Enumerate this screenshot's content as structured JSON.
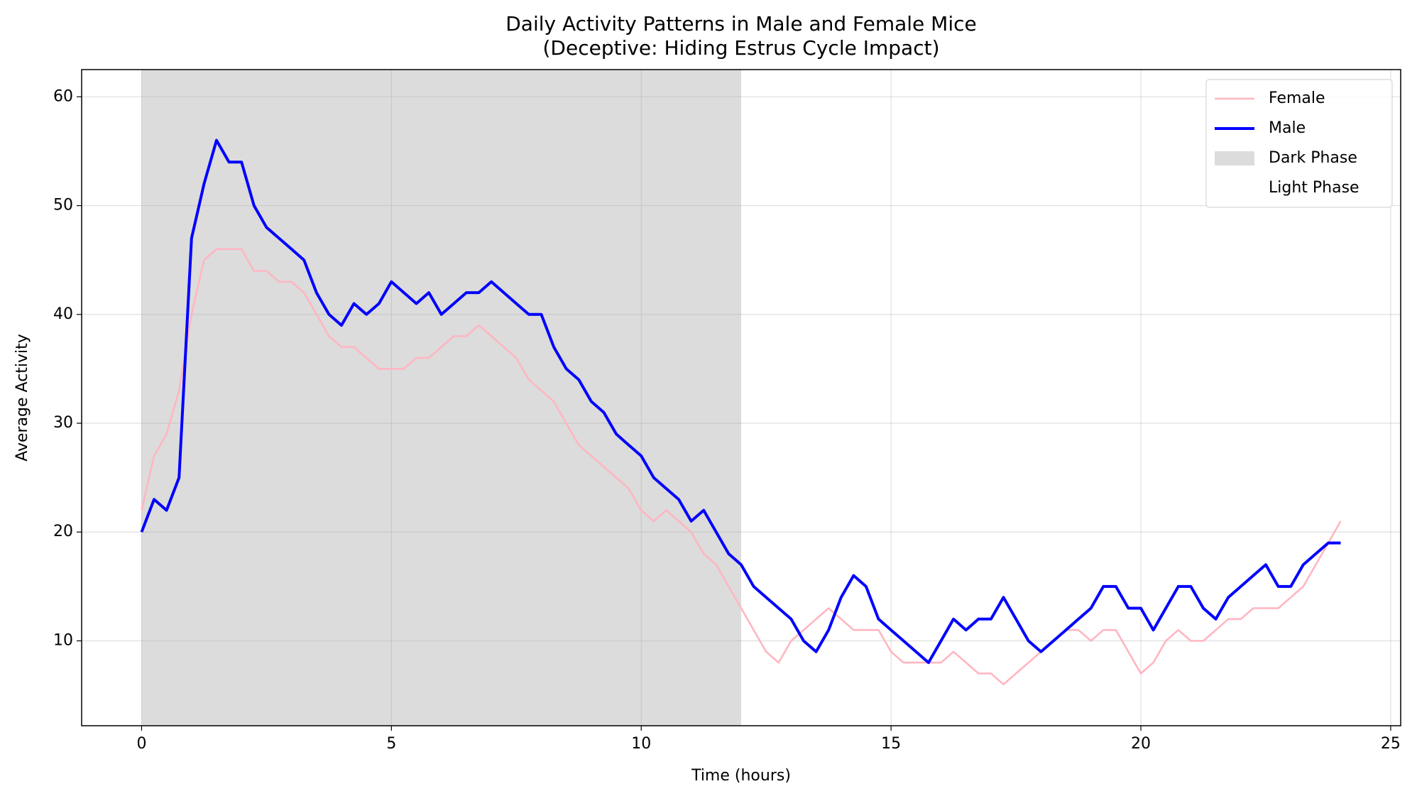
{
  "chart_data": {
    "type": "line",
    "title": "Daily Activity Patterns in Male and Female Mice",
    "subtitle": "(Deceptive: Hiding Estrus Cycle Impact)",
    "x_label": "Time (hours)",
    "y_label": "Average Activity",
    "x": [
      0,
      0.25,
      0.5,
      0.75,
      1,
      1.25,
      1.5,
      1.75,
      2,
      2.25,
      2.5,
      2.75,
      3,
      3.25,
      3.5,
      3.75,
      4,
      4.25,
      4.5,
      4.75,
      5,
      5.25,
      5.5,
      5.75,
      6,
      6.25,
      6.5,
      6.75,
      7,
      7.25,
      7.5,
      7.75,
      8,
      8.25,
      8.5,
      8.75,
      9,
      9.25,
      9.5,
      9.75,
      10,
      10.25,
      10.5,
      10.75,
      11,
      11.25,
      11.5,
      11.75,
      12,
      12.25,
      12.5,
      12.75,
      13,
      13.25,
      13.5,
      13.75,
      14,
      14.25,
      14.5,
      14.75,
      15,
      15.25,
      15.5,
      15.75,
      16,
      16.25,
      16.5,
      16.75,
      17,
      17.25,
      17.5,
      17.75,
      18,
      18.25,
      18.5,
      18.75,
      19,
      19.25,
      19.5,
      19.75,
      20,
      20.25,
      20.5,
      20.75,
      21,
      21.25,
      21.5,
      21.75,
      22,
      22.25,
      22.5,
      22.75,
      23,
      23.25,
      23.5,
      23.75,
      24
    ],
    "series": [
      {
        "name": "Female",
        "color": "#ffb6c1",
        "values": [
          22,
          27,
          29,
          33,
          40,
          45,
          46,
          46,
          46,
          44,
          44,
          43,
          43,
          42,
          40,
          38,
          37,
          37,
          36,
          35,
          35,
          35,
          36,
          36,
          37,
          38,
          38,
          39,
          38,
          37,
          36,
          34,
          33,
          32,
          30,
          28,
          27,
          26,
          25,
          24,
          22,
          21,
          22,
          21,
          20,
          18,
          17,
          15,
          13,
          11,
          9,
          8,
          10,
          11,
          12,
          13,
          12,
          11,
          11,
          11,
          9,
          8,
          8,
          8,
          8,
          9,
          8,
          7,
          7,
          6,
          7,
          8,
          9,
          10,
          11,
          11,
          10,
          11,
          11,
          9,
          7,
          8,
          10,
          11,
          10,
          10,
          11,
          12,
          12,
          13,
          13,
          13,
          14,
          15,
          17,
          19,
          21
        ]
      },
      {
        "name": "Male",
        "color": "#0000ff",
        "values": [
          20,
          23,
          22,
          25,
          47,
          52,
          56,
          54,
          54,
          50,
          48,
          47,
          46,
          45,
          42,
          40,
          39,
          41,
          40,
          41,
          43,
          42,
          41,
          42,
          40,
          41,
          42,
          42,
          43,
          42,
          41,
          40,
          40,
          37,
          35,
          34,
          32,
          31,
          29,
          28,
          27,
          25,
          24,
          23,
          21,
          22,
          20,
          18,
          17,
          15,
          14,
          13,
          12,
          10,
          9,
          11,
          14,
          16,
          15,
          12,
          11,
          10,
          9,
          8,
          10,
          12,
          11,
          12,
          12,
          14,
          12,
          10,
          9,
          10,
          11,
          12,
          13,
          15,
          15,
          13,
          13,
          11,
          13,
          15,
          15,
          13,
          12,
          14,
          15,
          16,
          17,
          15,
          15,
          17,
          18,
          19,
          19
        ]
      }
    ],
    "phases": [
      {
        "name": "Dark Phase",
        "start": 0,
        "end": 12,
        "color": "#dcdcdc"
      },
      {
        "name": "Light Phase",
        "start": 12,
        "end": 24,
        "color": "#ffffff"
      }
    ],
    "xlim": [
      -1.2,
      25.2
    ],
    "ylim": [
      2.2,
      62.5
    ],
    "xticks": [
      0,
      5,
      10,
      15,
      20,
      25
    ],
    "yticks": [
      10,
      20,
      30,
      40,
      50,
      60
    ],
    "grid": true,
    "legend": "upper right"
  }
}
